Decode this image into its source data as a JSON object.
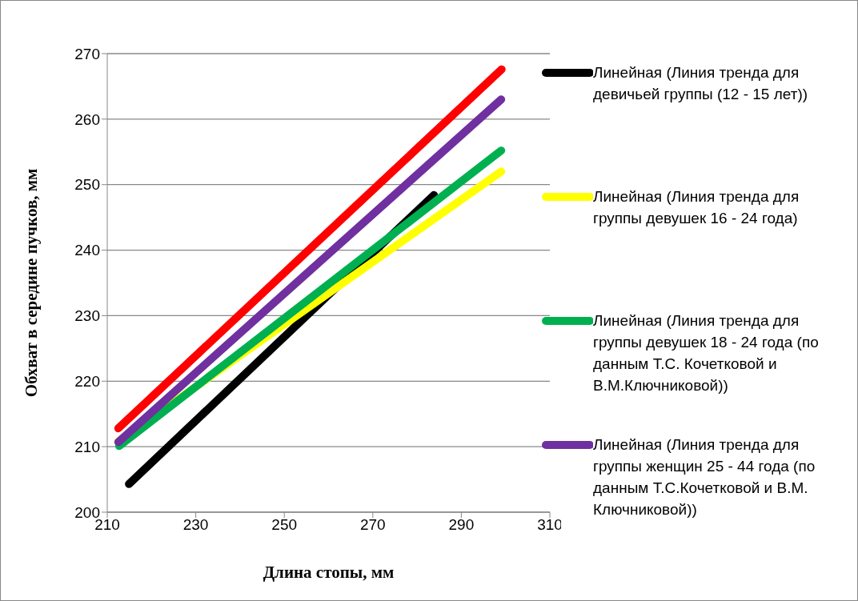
{
  "chart_data": {
    "type": "line",
    "xlabel": "Длина стопы, мм",
    "ylabel": "Обхват в середине пучков, мм",
    "xlim": [
      210,
      310
    ],
    "xticks": [
      210,
      230,
      250,
      270,
      290,
      310
    ],
    "ylim": [
      200,
      270
    ],
    "yticks": [
      200,
      210,
      220,
      230,
      240,
      250,
      260,
      270
    ],
    "grid": "y",
    "legend": "right",
    "line_style": "solid",
    "marker": "none",
    "series": [
      {
        "name": "Линейная (Линия тренда для девичьей группы (12 - 15 лет))",
        "color": "#000000",
        "x": [
          214.9,
          283.8
        ],
        "values": [
          204.3,
          248.4
        ]
      },
      {
        "name": "Линейная (Линия тренда для группы девушек 16 - 24 года)",
        "color": "#ffff00",
        "x": [
          212.5,
          299
        ],
        "values": [
          210.8,
          252
        ]
      },
      {
        "name": "Линейная (Линия тренда для группы девушек 18 - 24 года (по данным Т.С. Кочетковой и В.М.Ключниковой))",
        "color": "#00b050",
        "x": [
          212.7,
          299
        ],
        "values": [
          210.1,
          255.2
        ]
      },
      {
        "name": "Линейная (Линия тренда для группы женщин 25 - 44 года (по данным Т.С.Кочетковой и В.М. Ключниковой))",
        "color": "#7030a0",
        "x": [
          212.5,
          299
        ],
        "values": [
          210.7,
          263
        ]
      },
      {
        "color": "#ff0000",
        "x": [
          212.5,
          299.1
        ],
        "values": [
          212.8,
          267.6
        ]
      }
    ]
  }
}
